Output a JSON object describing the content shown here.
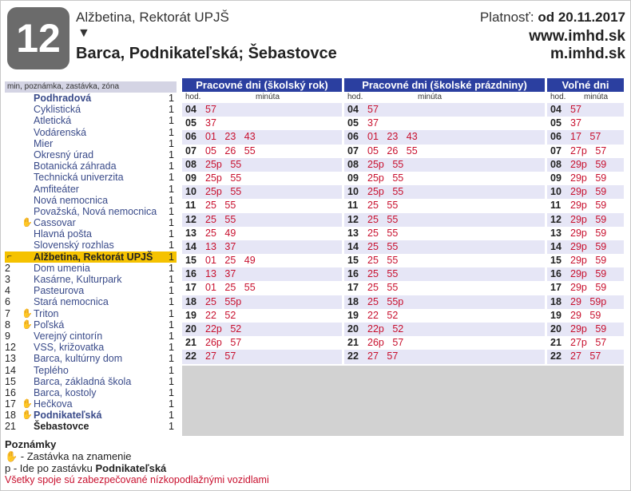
{
  "header": {
    "line": "12",
    "from": "Alžbetina, Rektorát UPJŠ",
    "arrow": "▼",
    "direction": "Barca, Podnikateľská; Šebastovce",
    "validity_label": "Platnosť: ",
    "validity_date": "od 20.11.2017",
    "web1": "www.imhd.sk",
    "web2": "m.imhd.sk"
  },
  "stops_header": "min, poznámka, zastávka, zóna",
  "stops": [
    {
      "min": "",
      "hand": false,
      "name": "Podhradová",
      "zone": "1",
      "style": "b"
    },
    {
      "min": "",
      "hand": false,
      "name": "Cyklistická",
      "zone": "1",
      "style": ""
    },
    {
      "min": "",
      "hand": false,
      "name": "Atletická",
      "zone": "1",
      "style": ""
    },
    {
      "min": "",
      "hand": false,
      "name": "Vodárenská",
      "zone": "1",
      "style": ""
    },
    {
      "min": "",
      "hand": false,
      "name": "Mier",
      "zone": "1",
      "style": ""
    },
    {
      "min": "",
      "hand": false,
      "name": "Okresný úrad",
      "zone": "1",
      "style": ""
    },
    {
      "min": "",
      "hand": false,
      "name": "Botanická záhrada",
      "zone": "1",
      "style": ""
    },
    {
      "min": "",
      "hand": false,
      "name": "Technická univerzita",
      "zone": "1",
      "style": ""
    },
    {
      "min": "",
      "hand": false,
      "name": "Amfiteáter",
      "zone": "1",
      "style": ""
    },
    {
      "min": "",
      "hand": false,
      "name": "Nová nemocnica",
      "zone": "1",
      "style": ""
    },
    {
      "min": "",
      "hand": false,
      "name": "Považská, Nová nemocnica",
      "zone": "1",
      "style": ""
    },
    {
      "min": "",
      "hand": true,
      "name": "Cassovar",
      "zone": "1",
      "style": ""
    },
    {
      "min": "",
      "hand": false,
      "name": "Hlavná pošta",
      "zone": "1",
      "style": ""
    },
    {
      "min": "",
      "hand": false,
      "name": "Slovenský rozhlas",
      "zone": "1",
      "style": ""
    },
    {
      "min": "",
      "hand": false,
      "name": "Alžbetina, Rektorát UPJŠ",
      "zone": "1",
      "style": "cur"
    },
    {
      "min": "2",
      "hand": false,
      "name": "Dom umenia",
      "zone": "1",
      "style": ""
    },
    {
      "min": "3",
      "hand": false,
      "name": "Kasárne, Kulturpark",
      "zone": "1",
      "style": ""
    },
    {
      "min": "4",
      "hand": false,
      "name": "Pasteurova",
      "zone": "1",
      "style": ""
    },
    {
      "min": "6",
      "hand": false,
      "name": "Stará nemocnica",
      "zone": "1",
      "style": ""
    },
    {
      "min": "7",
      "hand": true,
      "name": "Triton",
      "zone": "1",
      "style": ""
    },
    {
      "min": "8",
      "hand": true,
      "name": "Poľská",
      "zone": "1",
      "style": ""
    },
    {
      "min": "9",
      "hand": false,
      "name": "Verejný cintorín",
      "zone": "1",
      "style": ""
    },
    {
      "min": "12",
      "hand": false,
      "name": "VSS, križovatka",
      "zone": "1",
      "style": ""
    },
    {
      "min": "13",
      "hand": false,
      "name": "Barca, kultúrny dom",
      "zone": "1",
      "style": ""
    },
    {
      "min": "14",
      "hand": false,
      "name": "Teplého",
      "zone": "1",
      "style": ""
    },
    {
      "min": "15",
      "hand": false,
      "name": "Barca, základná škola",
      "zone": "1",
      "style": ""
    },
    {
      "min": "16",
      "hand": false,
      "name": "Barca, kostoly",
      "zone": "1",
      "style": ""
    },
    {
      "min": "17",
      "hand": true,
      "name": "Hečkova",
      "zone": "1",
      "style": ""
    },
    {
      "min": "18",
      "hand": true,
      "name": "Podnikateľská",
      "zone": "1",
      "style": "b"
    },
    {
      "min": "21",
      "hand": false,
      "name": "Šebastovce",
      "zone": "1",
      "style": "last"
    }
  ],
  "tables": [
    {
      "title": "Pracovné dni (školský rok)",
      "hod_label": "hod.",
      "min_label": "minúta",
      "rows": [
        {
          "h": "04",
          "m": "57"
        },
        {
          "h": "05",
          "m": "37"
        },
        {
          "h": "06",
          "m": "01 23 43"
        },
        {
          "h": "07",
          "m": "05 26 55"
        },
        {
          "h": "08",
          "m": "25p 55"
        },
        {
          "h": "09",
          "m": "25p 55"
        },
        {
          "h": "10",
          "m": "25p 55"
        },
        {
          "h": "11",
          "m": "25 55"
        },
        {
          "h": "12",
          "m": "25 55"
        },
        {
          "h": "13",
          "m": "25 49"
        },
        {
          "h": "14",
          "m": "13 37"
        },
        {
          "h": "15",
          "m": "01 25 49"
        },
        {
          "h": "16",
          "m": "13 37"
        },
        {
          "h": "17",
          "m": "01 25 55"
        },
        {
          "h": "18",
          "m": "25 55p"
        },
        {
          "h": "19",
          "m": "22 52"
        },
        {
          "h": "20",
          "m": "22p 52"
        },
        {
          "h": "21",
          "m": "26p 57"
        },
        {
          "h": "22",
          "m": "27 57"
        }
      ]
    },
    {
      "title": "Pracovné dni (školské prázdniny)",
      "hod_label": "hod.",
      "min_label": "minúta",
      "rows": [
        {
          "h": "04",
          "m": "57"
        },
        {
          "h": "05",
          "m": "37"
        },
        {
          "h": "06",
          "m": "01 23 43"
        },
        {
          "h": "07",
          "m": "05 26 55"
        },
        {
          "h": "08",
          "m": "25p 55"
        },
        {
          "h": "09",
          "m": "25p 55"
        },
        {
          "h": "10",
          "m": "25p 55"
        },
        {
          "h": "11",
          "m": "25 55"
        },
        {
          "h": "12",
          "m": "25 55"
        },
        {
          "h": "13",
          "m": "25 55"
        },
        {
          "h": "14",
          "m": "25 55"
        },
        {
          "h": "15",
          "m": "25 55"
        },
        {
          "h": "16",
          "m": "25 55"
        },
        {
          "h": "17",
          "m": "25 55"
        },
        {
          "h": "18",
          "m": "25 55p"
        },
        {
          "h": "19",
          "m": "22 52"
        },
        {
          "h": "20",
          "m": "22p 52"
        },
        {
          "h": "21",
          "m": "26p 57"
        },
        {
          "h": "22",
          "m": "27 57"
        }
      ]
    },
    {
      "title": "Voľné dni",
      "hod_label": "hod.",
      "min_label": "minúta",
      "rows": [
        {
          "h": "04",
          "m": "57"
        },
        {
          "h": "05",
          "m": "37"
        },
        {
          "h": "06",
          "m": "17 57"
        },
        {
          "h": "07",
          "m": "27p 57"
        },
        {
          "h": "08",
          "m": "29p 59"
        },
        {
          "h": "09",
          "m": "29p 59"
        },
        {
          "h": "10",
          "m": "29p 59"
        },
        {
          "h": "11",
          "m": "29p 59"
        },
        {
          "h": "12",
          "m": "29p 59"
        },
        {
          "h": "13",
          "m": "29p 59"
        },
        {
          "h": "14",
          "m": "29p 59"
        },
        {
          "h": "15",
          "m": "29p 59"
        },
        {
          "h": "16",
          "m": "29p 59"
        },
        {
          "h": "17",
          "m": "29p 59"
        },
        {
          "h": "18",
          "m": "29 59p"
        },
        {
          "h": "19",
          "m": "29 59"
        },
        {
          "h": "20",
          "m": "29p 59"
        },
        {
          "h": "21",
          "m": "27p 57"
        },
        {
          "h": "22",
          "m": "27 57"
        }
      ]
    }
  ],
  "notes": {
    "title": "Poznámky",
    "hand_note": " - Zastávka na znamenie",
    "p_note_prefix": "p - Ide po zastávku ",
    "p_note_stop": "Podnikateľská",
    "lowfloor": "Všetky spoje sú zabezpečované nízkopodlažnými vozidlami"
  }
}
